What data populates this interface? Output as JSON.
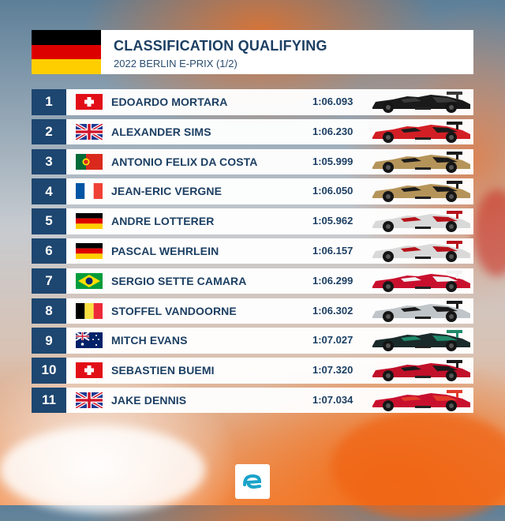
{
  "header": {
    "title": "CLASSIFICATION QUALIFYING",
    "subtitle": "2022 BERLIN E-PRIX (1/2)",
    "flag": "germany-flag"
  },
  "rows": [
    {
      "pos": "1",
      "flag": "switzerland",
      "driver": "EDOARDO MORTARA",
      "time": "1:06.093",
      "car_colors": [
        "#1a1a1a",
        "#3a3a3a"
      ]
    },
    {
      "pos": "2",
      "flag": "uk",
      "driver": "ALEXANDER SIMS",
      "time": "1:06.230",
      "car_colors": [
        "#d21f25",
        "#1a1a1a"
      ]
    },
    {
      "pos": "3",
      "flag": "portugal",
      "driver": "ANTONIO FELIX DA COSTA",
      "time": "1:05.999",
      "car_colors": [
        "#b5945a",
        "#1a1a1a"
      ]
    },
    {
      "pos": "4",
      "flag": "france",
      "driver": "JEAN-ERIC VERGNE",
      "time": "1:06.050",
      "car_colors": [
        "#b5945a",
        "#1a1a1a"
      ]
    },
    {
      "pos": "5",
      "flag": "germany",
      "driver": "ANDRE LOTTERER",
      "time": "1:05.962",
      "car_colors": [
        "#d9d9d9",
        "#b5111a"
      ]
    },
    {
      "pos": "6",
      "flag": "germany",
      "driver": "PASCAL WEHRLEIN",
      "time": "1:06.157",
      "car_colors": [
        "#d9d9d9",
        "#b5111a"
      ]
    },
    {
      "pos": "7",
      "flag": "brazil",
      "driver": "SERGIO SETTE CAMARA",
      "time": "1:06.299",
      "car_colors": [
        "#c8102e",
        "#f2f2f2"
      ]
    },
    {
      "pos": "8",
      "flag": "belgium",
      "driver": "STOFFEL VANDOORNE",
      "time": "1:06.302",
      "car_colors": [
        "#bfc5c8",
        "#1a1a1a"
      ]
    },
    {
      "pos": "9",
      "flag": "australia",
      "driver": "MITCH EVANS",
      "time": "1:07.027",
      "car_colors": [
        "#1a2a2a",
        "#1e8a6a"
      ]
    },
    {
      "pos": "10",
      "flag": "switzerland",
      "driver": "SEBASTIEN BUEMI",
      "time": "1:07.320",
      "car_colors": [
        "#c0102a",
        "#1a1a1a"
      ]
    },
    {
      "pos": "11",
      "flag": "uk",
      "driver": "JAKE DENNIS",
      "time": "1:07.034",
      "car_colors": [
        "#c8102e",
        "#e23a2a"
      ]
    }
  ],
  "footer": {
    "logo": "formula-e-logo"
  }
}
